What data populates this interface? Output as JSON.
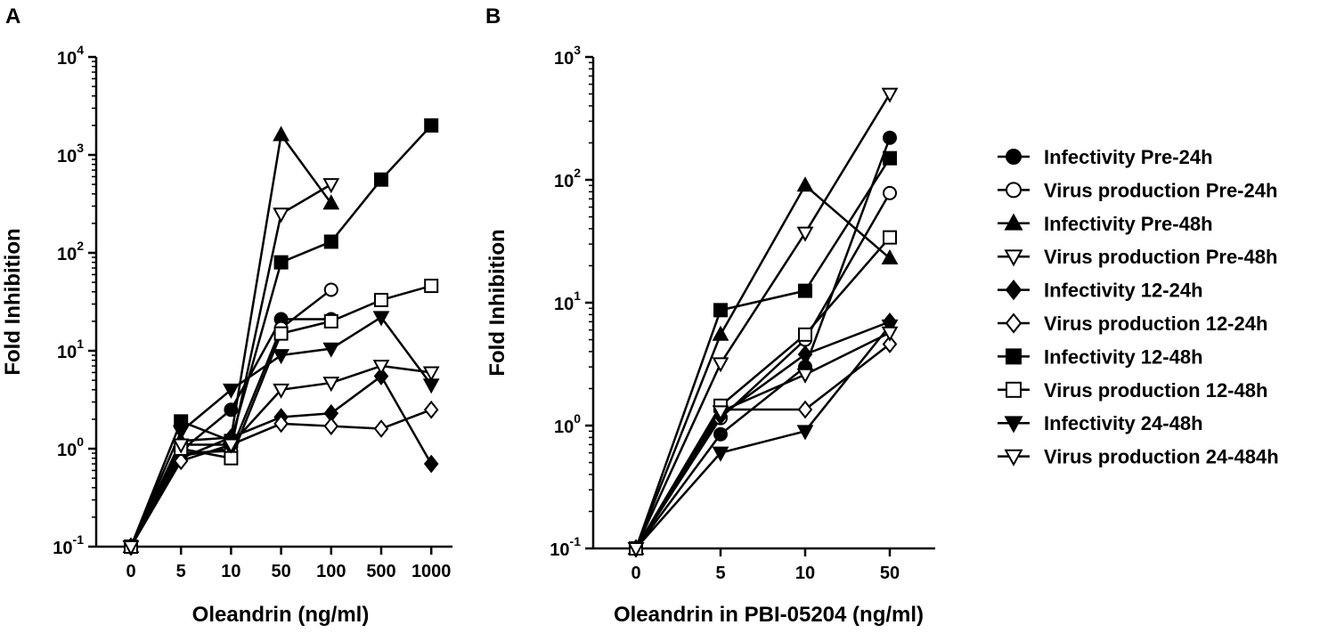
{
  "chart_data": [
    {
      "panel_label": "A",
      "type": "line",
      "y_scale": "log",
      "categories": [
        "0",
        "5",
        "10",
        "50",
        "100",
        "500",
        "1000"
      ],
      "xlabel": "Oleandrin (ng/ml)",
      "ylabel": "Fold Inhibition",
      "ylim": [
        0.1,
        10000
      ],
      "y_ticks": [
        {
          "value": 0.1,
          "base": "10",
          "exp": "-1"
        },
        {
          "value": 1,
          "base": "10",
          "exp": "0"
        },
        {
          "value": 10,
          "base": "10",
          "exp": "1"
        },
        {
          "value": 100,
          "base": "10",
          "exp": "2"
        },
        {
          "value": 1000,
          "base": "10",
          "exp": "3"
        },
        {
          "value": 10000,
          "base": "10",
          "exp": "4"
        }
      ],
      "series": [
        {
          "name": "Infectivity Pre-24h",
          "marker": "circle",
          "fill": "#000000",
          "values": [
            0.1,
            0.95,
            2.5,
            21,
            21,
            null,
            null
          ]
        },
        {
          "name": "Virus production Pre-24h",
          "marker": "circle",
          "fill": "#ffffff",
          "values": [
            0.1,
            0.9,
            0.95,
            17,
            42,
            null,
            null
          ]
        },
        {
          "name": "Infectivity Pre-48h",
          "marker": "triangle-up",
          "fill": "#000000",
          "values": [
            0.1,
            1.2,
            1.3,
            1600,
            320,
            null,
            null
          ]
        },
        {
          "name": "Virus production Pre-48h",
          "marker": "triangle-down",
          "fill": "#ffffff",
          "values": [
            0.1,
            0.85,
            1.0,
            250,
            500,
            null,
            null
          ]
        },
        {
          "name": "Infectivity 12-24h",
          "marker": "diamond",
          "fill": "#000000",
          "values": [
            0.1,
            0.8,
            1.3,
            2.1,
            2.3,
            5.5,
            0.7
          ]
        },
        {
          "name": "Virus production 12-24h",
          "marker": "diamond",
          "fill": "#ffffff",
          "values": [
            0.1,
            0.75,
            1.1,
            1.8,
            1.7,
            1.6,
            2.5
          ]
        },
        {
          "name": "Infectivity 12-48h",
          "marker": "square",
          "fill": "#000000",
          "values": [
            0.1,
            1.9,
            1.2,
            80,
            130,
            560,
            2000
          ]
        },
        {
          "name": "Virus production 12-48h",
          "marker": "square",
          "fill": "#ffffff",
          "values": [
            0.1,
            1.0,
            0.8,
            15,
            20,
            33,
            46
          ]
        },
        {
          "name": "Infectivity 24-48h",
          "marker": "triangle-down",
          "fill": "#000000",
          "values": [
            0.1,
            1.5,
            4.0,
            9,
            10.5,
            22,
            4.5
          ]
        },
        {
          "name": "Virus production 24-484h",
          "marker": "triangle-down",
          "fill": "#ffffff",
          "values": [
            0.1,
            1.1,
            1.1,
            4.0,
            4.7,
            7,
            6
          ]
        }
      ]
    },
    {
      "panel_label": "B",
      "type": "line",
      "y_scale": "log",
      "categories": [
        "0",
        "5",
        "10",
        "50"
      ],
      "xlabel": "Oleandrin in PBI-05204 (ng/ml)",
      "ylabel": "Fold Inhibition",
      "ylim": [
        0.1,
        1000
      ],
      "y_ticks": [
        {
          "value": 0.1,
          "base": "10",
          "exp": "-1"
        },
        {
          "value": 1,
          "base": "10",
          "exp": "0"
        },
        {
          "value": 10,
          "base": "10",
          "exp": "1"
        },
        {
          "value": 100,
          "base": "10",
          "exp": "2"
        },
        {
          "value": 1000,
          "base": "10",
          "exp": "3"
        }
      ],
      "series": [
        {
          "name": "Infectivity Pre-24h",
          "marker": "circle",
          "fill": "#000000",
          "values": [
            0.1,
            0.85,
            3.0,
            220
          ]
        },
        {
          "name": "Virus production Pre-24h",
          "marker": "circle",
          "fill": "#ffffff",
          "values": [
            0.1,
            1.15,
            5.0,
            78
          ]
        },
        {
          "name": "Infectivity Pre-48h",
          "marker": "triangle-up",
          "fill": "#000000",
          "values": [
            0.1,
            5.5,
            90,
            23
          ]
        },
        {
          "name": "Virus production Pre-48h",
          "marker": "triangle-down",
          "fill": "#ffffff",
          "values": [
            0.1,
            3.2,
            37,
            500
          ]
        },
        {
          "name": "Infectivity 12-24h",
          "marker": "diamond",
          "fill": "#000000",
          "values": [
            0.1,
            1.2,
            3.8,
            7.0
          ]
        },
        {
          "name": "Virus production 12-24h",
          "marker": "diamond",
          "fill": "#ffffff",
          "values": [
            0.1,
            1.35,
            1.35,
            4.6
          ]
        },
        {
          "name": "Infectivity 12-48h",
          "marker": "square",
          "fill": "#000000",
          "values": [
            0.1,
            8.7,
            12.5,
            150
          ]
        },
        {
          "name": "Virus production 12-48h",
          "marker": "square",
          "fill": "#ffffff",
          "values": [
            0.1,
            1.45,
            5.5,
            34
          ]
        },
        {
          "name": "Infectivity 24-48h",
          "marker": "triangle-down",
          "fill": "#000000",
          "values": [
            0.1,
            0.6,
            0.9,
            6.5
          ]
        },
        {
          "name": "Virus production 24-484h",
          "marker": "triangle-down",
          "fill": "#ffffff",
          "values": [
            0.1,
            1.3,
            2.6,
            5.7
          ]
        }
      ]
    }
  ],
  "legend": {
    "placement": "right",
    "entries": [
      {
        "label": "Infectivity Pre-24h",
        "marker": "circle",
        "fill": "#000000"
      },
      {
        "label": "Virus production Pre-24h",
        "marker": "circle",
        "fill": "#ffffff"
      },
      {
        "label": "Infectivity Pre-48h",
        "marker": "triangle-up",
        "fill": "#000000"
      },
      {
        "label": "Virus production Pre-48h",
        "marker": "triangle-down",
        "fill": "#ffffff"
      },
      {
        "label": "Infectivity 12-24h",
        "marker": "diamond",
        "fill": "#000000"
      },
      {
        "label": "Virus production 12-24h",
        "marker": "diamond",
        "fill": "#ffffff"
      },
      {
        "label": "Infectivity 12-48h",
        "marker": "square",
        "fill": "#000000"
      },
      {
        "label": "Virus production 12-48h",
        "marker": "square",
        "fill": "#ffffff"
      },
      {
        "label": "Infectivity 24-48h",
        "marker": "triangle-down",
        "fill": "#000000"
      },
      {
        "label": "Virus production 24-484h",
        "marker": "triangle-down",
        "fill": "#ffffff"
      }
    ]
  },
  "colors": {
    "line": "#000000",
    "background": "#ffffff"
  }
}
